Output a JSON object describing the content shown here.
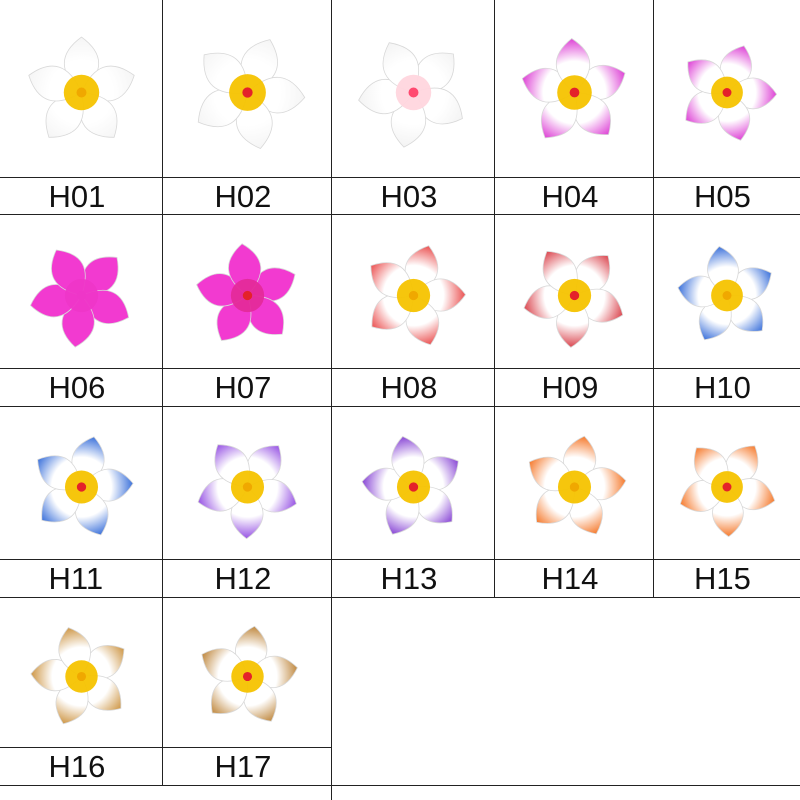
{
  "items": [
    {
      "code": "H01",
      "petal": "#ffffff",
      "tip": "#f4f4f4",
      "center": "#f6c300",
      "dot": "#f0a800"
    },
    {
      "code": "H02",
      "petal": "#ffffff",
      "tip": "#f4f4f4",
      "center": "#f6c300",
      "dot": "#e4222a"
    },
    {
      "code": "H03",
      "petal": "#ffffff",
      "tip": "#f2f2f2",
      "center": "#ffd6de",
      "dot": "#ff4a70"
    },
    {
      "code": "H04",
      "petal": "#ffffff",
      "tip": "#d92ad0",
      "center": "#f6c300",
      "dot": "#e4222a"
    },
    {
      "code": "H05",
      "petal": "#ffffff",
      "tip": "#d92ad0",
      "center": "#f6c300",
      "dot": "#e4222a"
    },
    {
      "code": "H06",
      "petal": "#f23ad0",
      "tip": "#f23ad0",
      "center": "#ee36c8",
      "dot": "#ee36c8"
    },
    {
      "code": "H07",
      "petal": "#f23ad0",
      "tip": "#f23ad0",
      "center": "#e42a9a",
      "dot": "#e4222a"
    },
    {
      "code": "H08",
      "petal": "#ffffff",
      "tip": "#e83c3c",
      "center": "#f6c300",
      "dot": "#f0a800"
    },
    {
      "code": "H09",
      "petal": "#ffffff",
      "tip": "#d6303a",
      "center": "#f6c300",
      "dot": "#e4222a"
    },
    {
      "code": "H10",
      "petal": "#ffffff",
      "tip": "#2460d6",
      "center": "#f6c300",
      "dot": "#f0a800"
    },
    {
      "code": "H11",
      "petal": "#ffffff",
      "tip": "#2460d6",
      "center": "#f6c300",
      "dot": "#e4222a"
    },
    {
      "code": "H12",
      "petal": "#ffffff",
      "tip": "#8a3ee0",
      "center": "#f6c300",
      "dot": "#f0a800"
    },
    {
      "code": "H13",
      "petal": "#ffffff",
      "tip": "#7a30d0",
      "center": "#f6c300",
      "dot": "#e4222a"
    },
    {
      "code": "H14",
      "petal": "#ffffff",
      "tip": "#f46a14",
      "center": "#f6c300",
      "dot": "#f0a800"
    },
    {
      "code": "H15",
      "petal": "#ffffff",
      "tip": "#f46a14",
      "center": "#f6c300",
      "dot": "#e4222a"
    },
    {
      "code": "H16",
      "petal": "#ffffff",
      "tip": "#c88a30",
      "center": "#f6c300",
      "dot": "#f0a800"
    },
    {
      "code": "H17",
      "petal": "#ffffff",
      "tip": "#b87a28",
      "center": "#f6c300",
      "dot": "#e4222a"
    }
  ]
}
